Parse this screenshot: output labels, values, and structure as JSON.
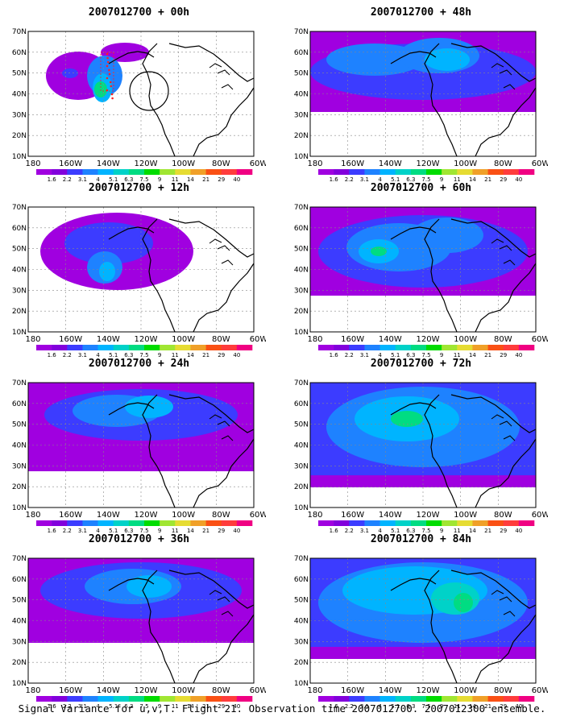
{
  "figure": {
    "caption": "Signal Variance for u,v,T. Flight 21. Observation time 2007012700. 2007012300 ensemble."
  },
  "axes": {
    "lat_labels": [
      "10N",
      "20N",
      "30N",
      "40N",
      "50N",
      "60N",
      "70N"
    ],
    "lon_labels": [
      "180",
      "160W",
      "140W",
      "120W",
      "100W",
      "80W",
      "60W"
    ]
  },
  "colorbar": {
    "labels": [
      "1.6",
      "2.2",
      "3.1",
      "4",
      "5.1",
      "6.3",
      "7.5",
      "9",
      "11",
      "14",
      "21",
      "29",
      "40"
    ],
    "colors": [
      "#a000e0",
      "#8200dc",
      "#3c3cff",
      "#1e82ff",
      "#00b4ff",
      "#00d2c8",
      "#00dc82",
      "#00dc00",
      "#a0e632",
      "#e6dc32",
      "#f0a028",
      "#fa5014",
      "#ff3c3c",
      "#f00082"
    ]
  },
  "panels": [
    {
      "title": "2007012700 + 00h",
      "lead": "00h"
    },
    {
      "title": "2007012700 + 48h",
      "lead": "48h"
    },
    {
      "title": "2007012700 + 12h",
      "lead": "12h"
    },
    {
      "title": "2007012700 + 60h",
      "lead": "60h"
    },
    {
      "title": "2007012700 + 24h",
      "lead": "24h"
    },
    {
      "title": "2007012700 + 72h",
      "lead": "72h"
    },
    {
      "title": "2007012700 + 36h",
      "lead": "36h"
    },
    {
      "title": "2007012700 + 84h",
      "lead": "84h"
    }
  ]
}
